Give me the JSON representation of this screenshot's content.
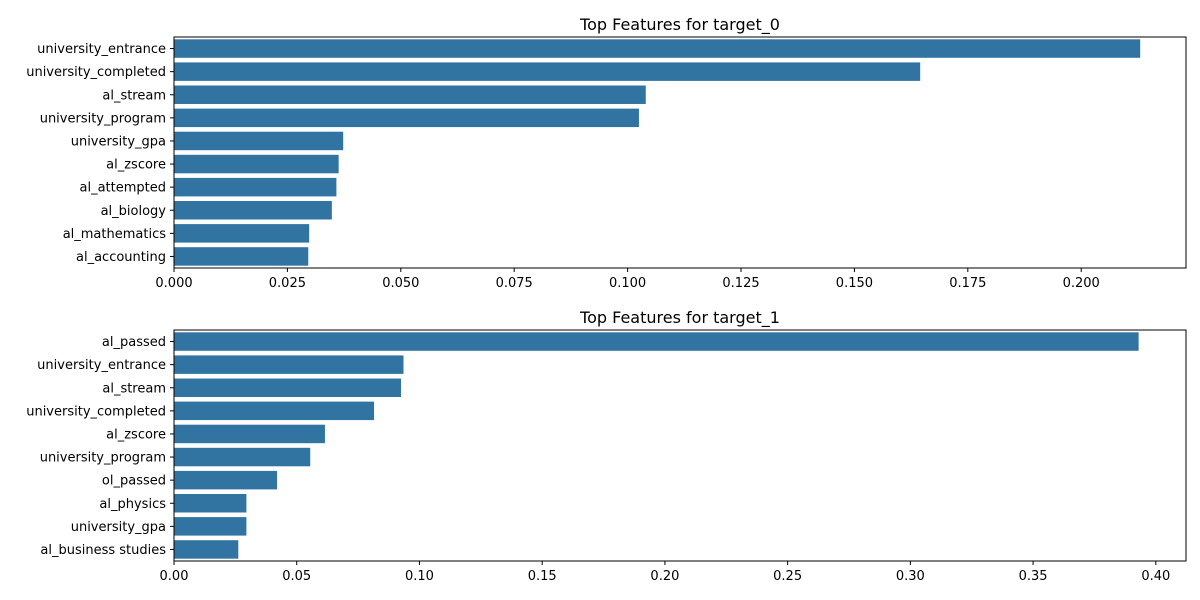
{
  "chart_data": [
    {
      "type": "bar",
      "orientation": "horizontal",
      "title": "Top Features for target_0",
      "xlabel": "",
      "ylabel": "",
      "categories": [
        "university_entrance",
        "university_completed",
        "al_stream",
        "university_program",
        "university_gpa",
        "al_zscore",
        "al_attempted",
        "al_biology",
        "al_mathematics",
        "al_accounting"
      ],
      "values": [
        0.213,
        0.1645,
        0.104,
        0.1025,
        0.0373,
        0.0363,
        0.0358,
        0.0348,
        0.0298,
        0.0296
      ],
      "xlim": [
        0,
        0.2231
      ],
      "xticks": [
        0.0,
        0.025,
        0.05,
        0.075,
        0.1,
        0.125,
        0.15,
        0.175,
        0.2
      ],
      "xtick_labels": [
        "0.000",
        "0.025",
        "0.050",
        "0.075",
        "0.100",
        "0.125",
        "0.150",
        "0.175",
        "0.200"
      ],
      "bar_color": "#3274a1",
      "grid": false,
      "legend": "none"
    },
    {
      "type": "bar",
      "orientation": "horizontal",
      "title": "Top Features for target_1",
      "xlabel": "",
      "ylabel": "",
      "categories": [
        "al_passed",
        "university_entrance",
        "al_stream",
        "university_completed",
        "al_zscore",
        "university_program",
        "ol_passed",
        "al_physics",
        "university_gpa",
        "al_business studies"
      ],
      "values": [
        0.393,
        0.0935,
        0.0925,
        0.0815,
        0.0615,
        0.0555,
        0.042,
        0.0295,
        0.0295,
        0.0262
      ],
      "xlim": [
        0,
        0.4123
      ],
      "xticks": [
        0.0,
        0.05,
        0.1,
        0.15,
        0.2,
        0.25,
        0.3,
        0.35,
        0.4
      ],
      "xtick_labels": [
        "0.00",
        "0.05",
        "0.10",
        "0.15",
        "0.20",
        "0.25",
        "0.30",
        "0.35",
        "0.40"
      ],
      "bar_color": "#3274a1",
      "grid": false,
      "legend": "none"
    }
  ]
}
